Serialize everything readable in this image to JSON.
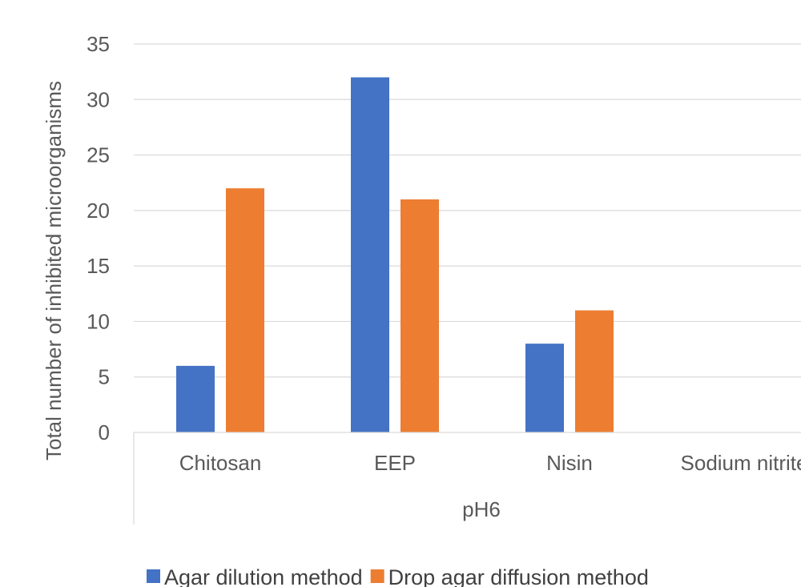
{
  "chart_data": {
    "type": "bar",
    "title": "",
    "group_label": "pH6",
    "categories": [
      "Chitosan",
      "EEP",
      "Nisin",
      "Sodium nitrite"
    ],
    "series": [
      {
        "name": "Agar dilution method",
        "color": "#4472c4",
        "values": [
          6,
          32,
          8,
          0
        ]
      },
      {
        "name": "Drop agar diffusion method",
        "color": "#ed7d31",
        "values": [
          22,
          21,
          11,
          0
        ]
      }
    ],
    "ylabel": "Total number of inhibited microorganisms",
    "xlabel": "",
    "ylim": [
      0,
      35
    ],
    "yticks": [
      "0",
      "5",
      "10",
      "15",
      "20",
      "25",
      "30",
      "35"
    ],
    "grid": true,
    "legend_position": "bottom"
  }
}
